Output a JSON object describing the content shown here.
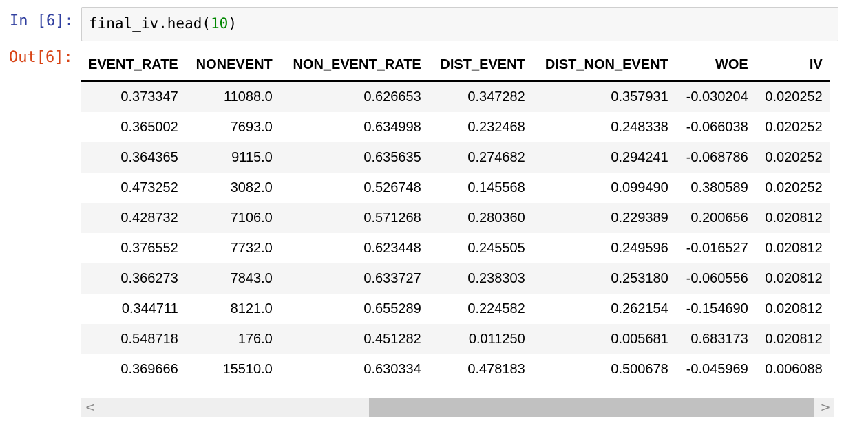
{
  "cell": {
    "in_prompt": "In [6]:",
    "out_prompt": "Out[6]:",
    "code_prefix": "final_iv.head(",
    "code_arg": "10",
    "code_suffix": ")"
  },
  "table": {
    "columns": [
      "EVENT_RATE",
      "NONEVENT",
      "NON_EVENT_RATE",
      "DIST_EVENT",
      "DIST_NON_EVENT",
      "WOE",
      "IV"
    ],
    "rows": [
      [
        "0.373347",
        "11088.0",
        "0.626653",
        "0.347282",
        "0.357931",
        "-0.030204",
        "0.020252"
      ],
      [
        "0.365002",
        "7693.0",
        "0.634998",
        "0.232468",
        "0.248338",
        "-0.066038",
        "0.020252"
      ],
      [
        "0.364365",
        "9115.0",
        "0.635635",
        "0.274682",
        "0.294241",
        "-0.068786",
        "0.020252"
      ],
      [
        "0.473252",
        "3082.0",
        "0.526748",
        "0.145568",
        "0.099490",
        "0.380589",
        "0.020252"
      ],
      [
        "0.428732",
        "7106.0",
        "0.571268",
        "0.280360",
        "0.229389",
        "0.200656",
        "0.020812"
      ],
      [
        "0.376552",
        "7732.0",
        "0.623448",
        "0.245505",
        "0.249596",
        "-0.016527",
        "0.020812"
      ],
      [
        "0.366273",
        "7843.0",
        "0.633727",
        "0.238303",
        "0.253180",
        "-0.060556",
        "0.020812"
      ],
      [
        "0.344711",
        "8121.0",
        "0.655289",
        "0.224582",
        "0.262154",
        "-0.154690",
        "0.020812"
      ],
      [
        "0.548718",
        "176.0",
        "0.451282",
        "0.011250",
        "0.005681",
        "0.683173",
        "0.020812"
      ],
      [
        "0.369666",
        "15510.0",
        "0.630334",
        "0.478183",
        "0.500678",
        "-0.045969",
        "0.006088"
      ]
    ]
  },
  "scrollbar": {
    "left_arrow": "<",
    "right_arrow": ">"
  }
}
